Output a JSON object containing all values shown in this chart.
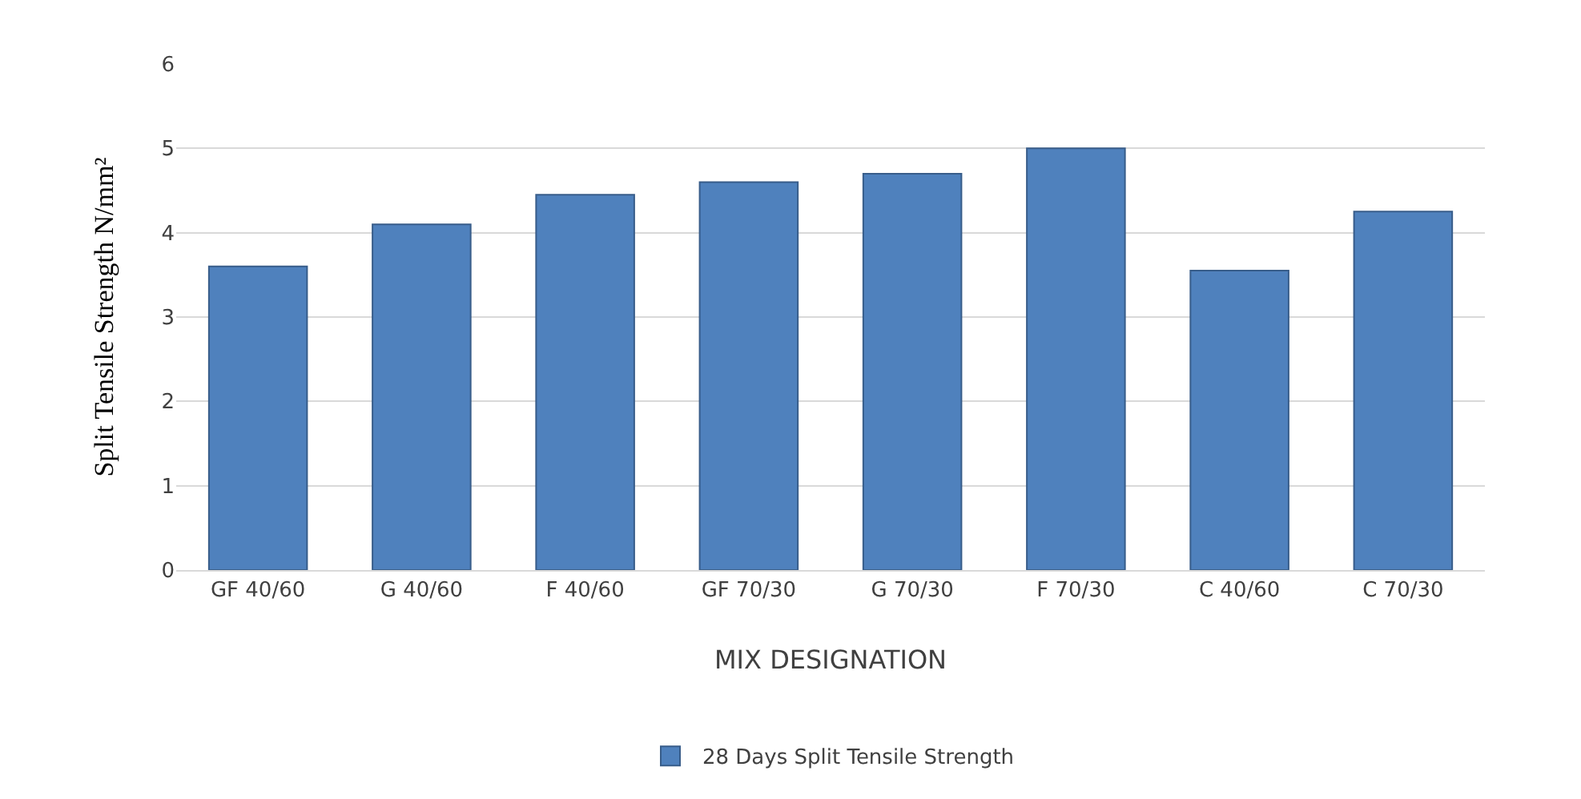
{
  "chart_data": {
    "type": "bar",
    "xlabel": "MIX DESIGNATION",
    "ylabel": "Split Tensile Strength N/mm²",
    "categories": [
      "GF 40/60",
      "G 40/60",
      "F 40/60",
      "GF 70/30",
      "G 70/30",
      "F 70/30",
      "C 40/60",
      "C 70/30"
    ],
    "series": [
      {
        "name": "28 Days Split Tensile Strength",
        "color": "#4f81bd",
        "values": [
          3.6,
          4.1,
          4.45,
          4.6,
          4.7,
          5.0,
          3.55,
          4.25
        ]
      }
    ],
    "ylim": [
      0,
      6
    ],
    "yticks": [
      0,
      1,
      2,
      3,
      4,
      5,
      6
    ],
    "grid": "y",
    "legend": "bottom"
  }
}
